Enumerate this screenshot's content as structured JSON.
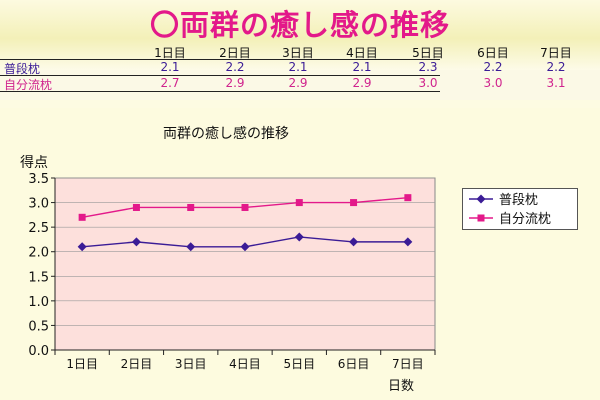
{
  "slide": {
    "title": "〇両群の癒し感の推移"
  },
  "table": {
    "headers": [
      "1日目",
      "2日目",
      "3日目",
      "4日目",
      "5日目",
      "6日目",
      "7日目"
    ],
    "rows": [
      {
        "label": "普段枕",
        "color": "#3b1c96",
        "values": [
          "2.1",
          "2.2",
          "2.1",
          "2.1",
          "2.3",
          "2.2",
          "2.2"
        ]
      },
      {
        "label": "自分流枕",
        "color": "#d0248e",
        "values": [
          "2.7",
          "2.9",
          "2.9",
          "2.9",
          "3.0",
          "3.0",
          "3.1"
        ]
      }
    ]
  },
  "chart_data": {
    "type": "line",
    "title": "両群の癒し感の推移",
    "ylabel": "得点",
    "xlabel": "日数",
    "categories": [
      "1日目",
      "2日目",
      "3日目",
      "4日目",
      "5日目",
      "6日目",
      "7日目"
    ],
    "ylim": [
      0,
      3.5
    ],
    "ytick_labels": [
      "3.5",
      "3.0",
      "2.5",
      "2.0",
      "1.5",
      "1.0",
      "0.5",
      "0.0"
    ],
    "grid": true,
    "legend_position": "right",
    "plot_bg": "#fde0dc",
    "series": [
      {
        "name": "普段枕",
        "color": "#3b1c96",
        "marker": "diamond",
        "values": [
          2.1,
          2.2,
          2.1,
          2.1,
          2.3,
          2.2,
          2.2
        ]
      },
      {
        "name": "自分流枕",
        "color": "#e3198a",
        "marker": "square",
        "values": [
          2.7,
          2.9,
          2.9,
          2.9,
          3.0,
          3.0,
          3.1
        ]
      }
    ]
  }
}
